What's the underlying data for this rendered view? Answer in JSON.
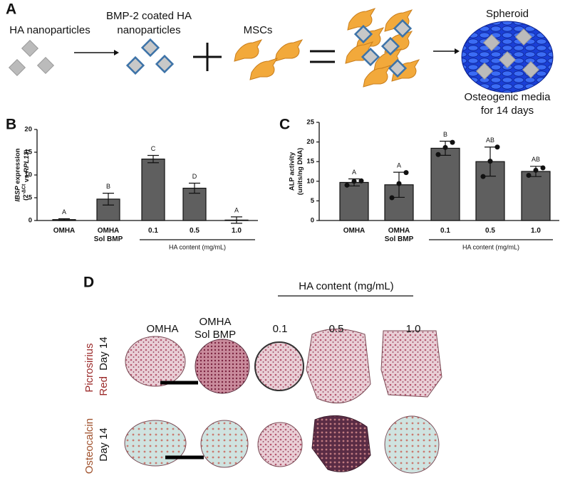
{
  "panel_a": {
    "label": "A",
    "ha_label": "HA nanoparticles",
    "coated_label": [
      "BMP-2 coated HA",
      "nanoparticles"
    ],
    "msc_label": "MSCs",
    "spheroid_label": "Spheroid",
    "note": [
      "Osteogenic media",
      "for 14 days"
    ]
  },
  "chart_data": [
    {
      "type": "bar",
      "panel": "B",
      "ylabel": [
        "IBSP",
        " expression",
        "(2",
        "-ΔCt",
        " vs ",
        "RPL13",
        ")"
      ],
      "categories": [
        "OMHA",
        "OMHA\nSol BMP",
        "0.1",
        "0.5",
        "1.0"
      ],
      "values": [
        0.2,
        4.7,
        13.5,
        7.1,
        0.1
      ],
      "errors": [
        0.2,
        1.3,
        0.8,
        1.1,
        0.7
      ],
      "letters": [
        "A",
        "B",
        "C",
        "D",
        "A"
      ],
      "group_label": "HA content (mg/mL)",
      "color": "#5f5f5f",
      "ylim": [
        0,
        20
      ],
      "yticks": [
        0,
        5,
        10,
        15,
        20
      ]
    },
    {
      "type": "bar",
      "panel": "C",
      "ylabel": [
        "ALP activity",
        "(units/ng DNA)"
      ],
      "categories": [
        "OMHA",
        "OMHA\nSol BMP",
        "0.1",
        "0.5",
        "1.0"
      ],
      "values": [
        9.7,
        9.1,
        18.4,
        15.0,
        12.5
      ],
      "errors": [
        0.9,
        3.2,
        1.8,
        3.7,
        1.3
      ],
      "points": [
        [
          9.0,
          10.0,
          10.1
        ],
        [
          5.8,
          9.4,
          12.2
        ],
        [
          16.8,
          18.6,
          19.9
        ],
        [
          11.2,
          15.1,
          18.7
        ],
        [
          11.5,
          12.8,
          13.4
        ]
      ],
      "letters": [
        "A",
        "A",
        "B",
        "AB",
        "AB"
      ],
      "group_label": "HA content (mg/mL)",
      "color": "#5f5f5f",
      "ylim": [
        0,
        25
      ],
      "yticks": [
        0,
        5,
        10,
        15,
        20,
        25
      ]
    }
  ],
  "panel_d": {
    "label": "D",
    "group_label": "HA content (mg/mL)",
    "columns": [
      "OMHA",
      "OMHA\nSol BMP",
      "0.1",
      "0.5",
      "1.0"
    ],
    "rows": [
      {
        "stain": [
          "Picrosirius",
          "Red"
        ],
        "day": "Day 14"
      },
      {
        "stain": [
          "Osteocalcin"
        ],
        "day": "Day 14"
      }
    ]
  }
}
